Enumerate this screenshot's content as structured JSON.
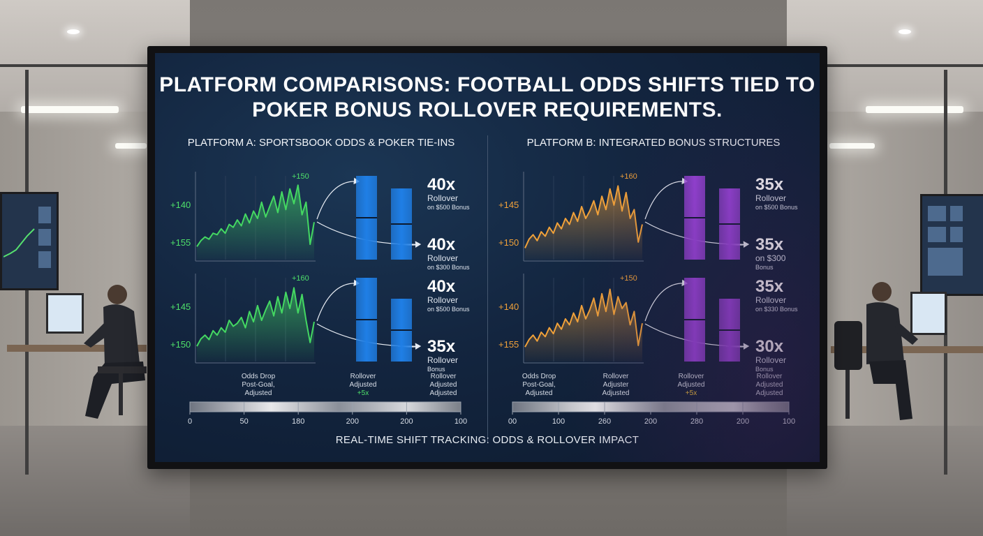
{
  "title": "PLATFORM COMPARISONS: FOOTBALL ODDS SHIFTS TIED TO POKER BONUS ROLLOVER REQUIREMENTS.",
  "colors": {
    "platform_a_line": "#44d862",
    "platform_a_bar": "#1f7fe6",
    "platform_b_line": "#f0a13a",
    "platform_b_bar": "#9b44dd",
    "screen_bg": "#13253f"
  },
  "panels": [
    {
      "title": "PLATFORM A: SPORTSBOOK ODDS & POKER TIE-INS",
      "label_color": "#4ee06a",
      "charts": [
        {
          "peak_label": "+150",
          "y_labels": [
            "+140",
            "+155"
          ],
          "line_values": [
            0.12,
            0.2,
            0.25,
            0.22,
            0.3,
            0.28,
            0.36,
            0.3,
            0.42,
            0.38,
            0.48,
            0.4,
            0.56,
            0.44,
            0.6,
            0.5,
            0.72,
            0.52,
            0.66,
            0.8,
            0.58,
            0.86,
            0.62,
            0.9,
            0.7,
            0.95,
            0.55,
            0.72,
            0.15,
            0.45
          ],
          "bars": [
            1.0,
            0.85
          ],
          "rollovers": [
            {
              "value": "40x",
              "line1": "Rollover",
              "line2": "on $500 Bonus"
            },
            {
              "value": "40x",
              "line1": "Rollover",
              "line2": "on $300 Bonus"
            }
          ]
        },
        {
          "peak_label": "+160",
          "y_labels": [
            "+145",
            "+150"
          ],
          "line_values": [
            0.15,
            0.25,
            0.3,
            0.24,
            0.36,
            0.3,
            0.4,
            0.34,
            0.5,
            0.42,
            0.46,
            0.54,
            0.4,
            0.62,
            0.48,
            0.7,
            0.5,
            0.64,
            0.76,
            0.56,
            0.82,
            0.6,
            0.88,
            0.66,
            0.94,
            0.6,
            0.85,
            0.5,
            0.2,
            0.48
          ],
          "bars": [
            1.0,
            0.75
          ],
          "rollovers": [
            {
              "value": "40x",
              "line1": "Rollover",
              "line2": "on $500 Bonus"
            },
            {
              "value": "35x",
              "line1": "Rollover",
              "line2": "Bonus"
            }
          ]
        }
      ],
      "footer_labels": [
        {
          "lines": [
            "Odds Drop",
            "Post-Goal,",
            "Adjusted"
          ]
        },
        {
          "lines": [
            "Rollover",
            "Adjusted",
            "+5x"
          ]
        },
        {
          "lines": [
            "Rollover",
            "Adjusted",
            "Adjusted"
          ]
        }
      ],
      "scale_ticks": [
        "0",
        "50",
        "180",
        "200",
        "200",
        "100"
      ]
    },
    {
      "title": "PLATFORM B: INTEGRATED BONUS STRUCTURES",
      "label_color": "#f0a13a",
      "charts": [
        {
          "peak_label": "+160",
          "y_labels": [
            "+145",
            "+150"
          ],
          "line_values": [
            0.1,
            0.22,
            0.28,
            0.2,
            0.32,
            0.26,
            0.38,
            0.3,
            0.44,
            0.36,
            0.5,
            0.42,
            0.58,
            0.46,
            0.66,
            0.5,
            0.6,
            0.74,
            0.55,
            0.8,
            0.62,
            0.9,
            0.68,
            0.94,
            0.6,
            0.85,
            0.5,
            0.62,
            0.18,
            0.42
          ],
          "bars": [
            1.0,
            0.85
          ],
          "rollovers": [
            {
              "value": "35x",
              "line1": "Rollover",
              "line2": "on $500 Bonus"
            },
            {
              "value": "35x",
              "line1": "on $300",
              "line2": "Bonus"
            }
          ]
        },
        {
          "peak_label": "+150",
          "y_labels": [
            "+140",
            "+155"
          ],
          "line_values": [
            0.14,
            0.24,
            0.3,
            0.22,
            0.34,
            0.28,
            0.4,
            0.32,
            0.46,
            0.38,
            0.52,
            0.44,
            0.6,
            0.48,
            0.7,
            0.52,
            0.64,
            0.8,
            0.56,
            0.86,
            0.62,
            0.92,
            0.58,
            0.82,
            0.66,
            0.74,
            0.44,
            0.62,
            0.16,
            0.46
          ],
          "bars": [
            1.0,
            0.75
          ],
          "rollovers": [
            {
              "value": "35x",
              "line1": "Rollover",
              "line2": "on $330 Bonus"
            },
            {
              "value": "30x",
              "line1": "Rollover",
              "line2": "Bonus"
            }
          ]
        }
      ],
      "footer_labels": [
        {
          "lines": [
            "Odds Drop",
            "Post-Goal,",
            "Adjusted"
          ]
        },
        {
          "lines": [
            "Rollover",
            "Adjuster",
            "Adjusted"
          ]
        },
        {
          "lines": [
            "Rollover",
            "Adjusted",
            "+5x"
          ]
        },
        {
          "lines": [
            "Rollover",
            "Adjusted",
            "Adjusted"
          ]
        }
      ],
      "scale_ticks": [
        "00",
        "100",
        "260",
        "200",
        "280",
        "200",
        "100"
      ]
    }
  ],
  "bottom_title": "REAL-TIME SHIFT TRACKING: ODDS & ROLLOVER IMPACT"
}
